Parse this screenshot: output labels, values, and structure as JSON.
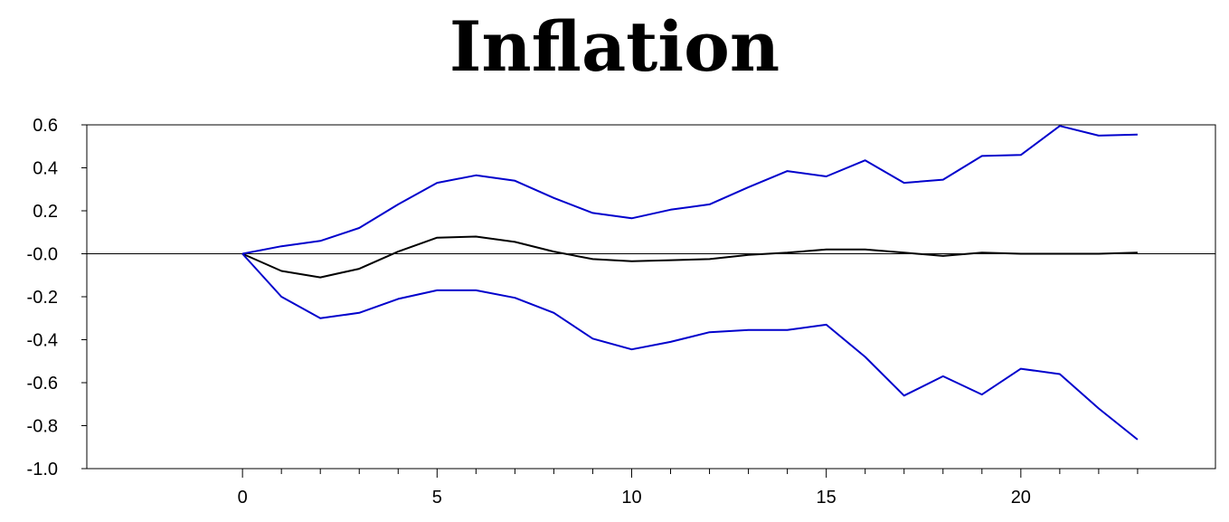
{
  "chart_data": {
    "type": "line",
    "title": "Inflation",
    "xlabel": "",
    "ylabel": "",
    "xlim": [
      -4,
      25
    ],
    "ylim": [
      -1.0,
      0.6
    ],
    "x_ticks": [
      0,
      5,
      10,
      15,
      20
    ],
    "x_minor_ticks": [
      1,
      2,
      3,
      4,
      6,
      7,
      8,
      9,
      11,
      12,
      13,
      14,
      16,
      17,
      18,
      19,
      21,
      22,
      23
    ],
    "y_ticks": [
      0.6,
      0.4,
      0.2,
      0.0,
      -0.2,
      -0.4,
      -0.6,
      -0.8,
      -1.0
    ],
    "y_tick_labels": [
      "0.6",
      "0.4",
      "0.2",
      "-0.0",
      "-0.2",
      "-0.4",
      "-0.6",
      "-0.8",
      "-1.0"
    ],
    "zero_line": true,
    "grid": false,
    "x": [
      0,
      1,
      2,
      3,
      4,
      5,
      6,
      7,
      8,
      9,
      10,
      11,
      12,
      13,
      14,
      15,
      16,
      17,
      18,
      19,
      20,
      21,
      22,
      23
    ],
    "series": [
      {
        "color": "#000000",
        "values": [
          0.0,
          -0.08,
          -0.11,
          -0.07,
          0.01,
          0.075,
          0.08,
          0.055,
          0.01,
          -0.025,
          -0.035,
          -0.03,
          -0.025,
          -0.005,
          0.005,
          0.02,
          0.02,
          0.005,
          -0.01,
          0.005,
          0.0,
          0.0,
          0.0,
          0.005
        ]
      },
      {
        "color": "#0000cc",
        "values": [
          0.0,
          0.035,
          0.06,
          0.12,
          0.23,
          0.33,
          0.365,
          0.34,
          0.26,
          0.19,
          0.165,
          0.205,
          0.23,
          0.31,
          0.385,
          0.36,
          0.435,
          0.33,
          0.345,
          0.455,
          0.46,
          0.595,
          0.55,
          0.555
        ]
      },
      {
        "color": "#0000cc",
        "values": [
          0.0,
          -0.2,
          -0.3,
          -0.275,
          -0.21,
          -0.17,
          -0.17,
          -0.205,
          -0.275,
          -0.395,
          -0.445,
          -0.41,
          -0.365,
          -0.355,
          -0.355,
          -0.33,
          -0.48,
          -0.66,
          -0.57,
          -0.655,
          -0.535,
          -0.56,
          -0.72,
          -0.865
        ]
      }
    ]
  }
}
